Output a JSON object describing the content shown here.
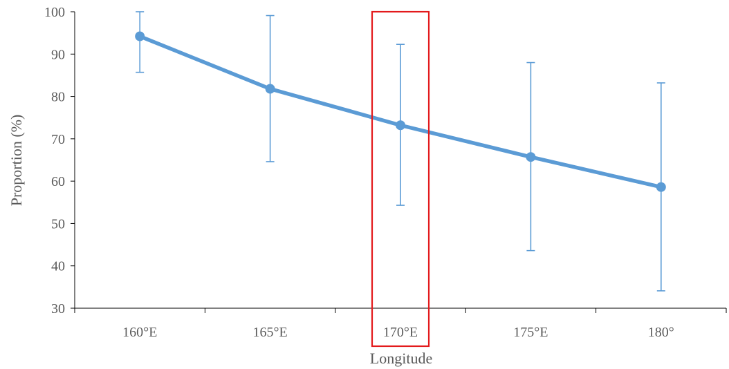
{
  "chart_data": {
    "type": "line",
    "title": "",
    "xlabel": "Longitude",
    "ylabel": "Proportion (%)",
    "categories": [
      "160°E",
      "165°E",
      "170°E",
      "175°E",
      "180°"
    ],
    "ylim": [
      30,
      100
    ],
    "yticks": [
      30,
      40,
      50,
      60,
      70,
      80,
      90,
      100
    ],
    "series": [
      {
        "values": [
          94.2,
          81.8,
          73.2,
          65.7,
          58.6
        ],
        "error_low": [
          85.7,
          64.6,
          54.3,
          43.6,
          34.1
        ],
        "error_high": [
          100,
          99.1,
          92.3,
          88.0,
          83.2
        ]
      }
    ],
    "grid": false,
    "legend": "none",
    "highlight": {
      "category": "170°E",
      "color": "#e31a1c"
    },
    "colors": {
      "series": "#5b9bd5",
      "axis": "#000000",
      "text": "#595959"
    }
  }
}
